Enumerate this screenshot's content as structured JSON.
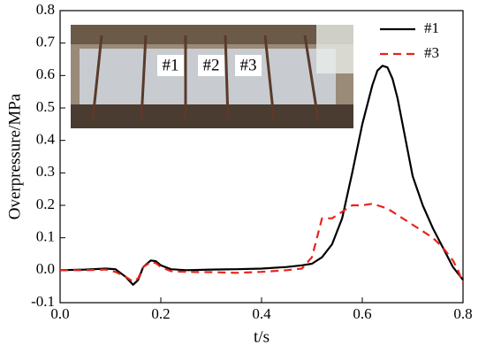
{
  "chart_data": {
    "type": "line",
    "x_label": "t/s",
    "y_label": "Overpressure/MPa",
    "annotations": [
      "#1",
      "#2",
      "#3"
    ],
    "x": [
      0,
      0.05,
      0.09,
      0.11,
      0.13,
      0.145,
      0.155,
      0.165,
      0.18,
      0.19,
      0.2,
      0.22,
      0.25,
      0.3,
      0.35,
      0.4,
      0.45,
      0.48,
      0.5,
      0.52,
      0.54,
      0.56,
      0.58,
      0.6,
      0.62,
      0.63,
      0.64,
      0.65,
      0.66,
      0.67,
      0.68,
      0.69,
      0.7,
      0.72,
      0.74,
      0.76,
      0.78,
      0.79,
      0.8
    ],
    "series": [
      {
        "name": "#1",
        "color": "#000000",
        "dashed": false,
        "values": [
          0,
          0.002,
          0.005,
          0.003,
          -0.02,
          -0.045,
          -0.03,
          0.01,
          0.03,
          0.028,
          0.015,
          0.003,
          0,
          0.002,
          0.003,
          0.005,
          0.01,
          0.015,
          0.02,
          0.04,
          0.08,
          0.16,
          0.3,
          0.45,
          0.57,
          0.615,
          0.63,
          0.625,
          0.59,
          0.53,
          0.45,
          0.37,
          0.29,
          0.2,
          0.13,
          0.07,
          0.01,
          -0.01,
          -0.03
        ]
      },
      {
        "name": "#3",
        "color": "#e8231d",
        "dashed": true,
        "values": [
          0,
          0,
          0.002,
          -0.005,
          -0.02,
          -0.035,
          -0.025,
          0.01,
          0.025,
          0.022,
          0.01,
          -0.003,
          -0.005,
          -0.006,
          -0.008,
          -0.005,
          0,
          0.005,
          0.04,
          0.16,
          0.16,
          0.18,
          0.2,
          0.2,
          0.205,
          0.2,
          0.195,
          0.19,
          0.18,
          0.17,
          0.16,
          0.15,
          0.14,
          0.12,
          0.1,
          0.07,
          0.03,
          0,
          -0.04
        ]
      }
    ],
    "xlim": [
      0,
      0.8
    ],
    "xticks": [
      {
        "value": 0,
        "label": "0.0"
      },
      0.2,
      0.4,
      0.6,
      0.8
    ],
    "ylim": [
      -0.1,
      0.8
    ],
    "yticks": [
      -0.1,
      {
        "value": 0,
        "label": "0.0"
      },
      0.1,
      0.2,
      0.3,
      0.4,
      0.5,
      0.6,
      0.7,
      0.8
    ],
    "legend": "top-right",
    "grid": false
  }
}
